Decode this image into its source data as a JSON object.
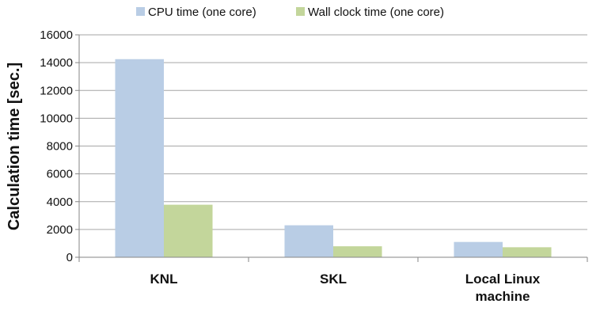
{
  "chart_data": {
    "type": "bar",
    "title": "",
    "xlabel": "",
    "ylabel": "Calculation time [sec.]",
    "ylim": [
      0,
      16000
    ],
    "yticks": [
      0,
      2000,
      4000,
      6000,
      8000,
      10000,
      12000,
      14000,
      16000
    ],
    "grid": true,
    "legend_position": "top",
    "categories": [
      [
        "KNL"
      ],
      [
        "SKL"
      ],
      [
        "Local Linux",
        "machine"
      ]
    ],
    "series": [
      {
        "name": "CPU time (one core)",
        "color": "#b9cde5",
        "values": [
          14250,
          2300,
          1100
        ]
      },
      {
        "name": "Wall clock time (one core)",
        "color": "#c3d69b",
        "values": [
          3780,
          790,
          720
        ]
      }
    ]
  }
}
